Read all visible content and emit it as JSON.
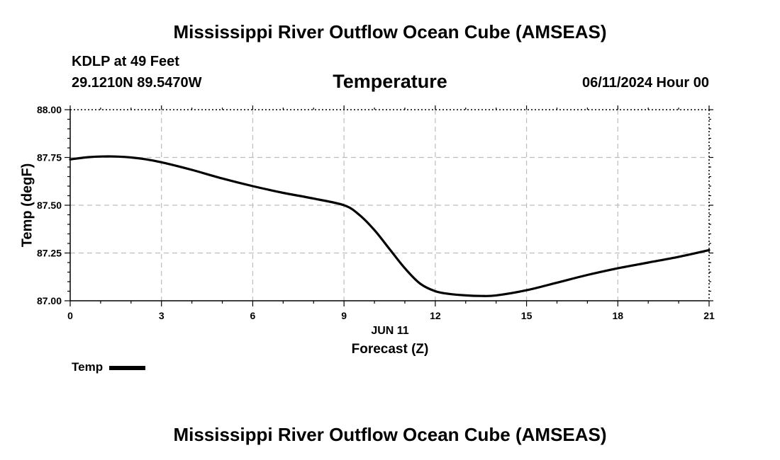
{
  "header": {
    "title": "Mississippi River Outflow Ocean Cube (AMSEAS)",
    "station": "KDLP at 49 Feet",
    "coords": "29.1210N  89.5470W",
    "variable": "Temperature",
    "datetime": "06/11/2024 Hour 00"
  },
  "footer": {
    "title": "Mississippi River Outflow Ocean Cube (AMSEAS)"
  },
  "legend": {
    "label": "Temp"
  },
  "chart_data": {
    "type": "line",
    "title": "Temperature",
    "xlabel": "Forecast (Z)",
    "xlabel_day": "JUN 11",
    "ylabel": "Temp (degF)",
    "xlim": [
      0,
      21
    ],
    "ylim": [
      87.0,
      88.0
    ],
    "xticks": [
      0,
      3,
      6,
      9,
      12,
      15,
      18,
      21
    ],
    "yticks": [
      87.0,
      87.25,
      87.5,
      87.75,
      88.0
    ],
    "ytick_labels": [
      "87.00",
      "87.25",
      "87.50",
      "87.75",
      "88.00"
    ],
    "grid": true,
    "series": [
      {
        "name": "Temp",
        "color": "#000000",
        "x": [
          0,
          0.5,
          1,
          1.5,
          2,
          2.5,
          3,
          4,
          5,
          6,
          7,
          8,
          9,
          9.5,
          10,
          10.5,
          11,
          11.5,
          12,
          12.5,
          13,
          13.5,
          14,
          15,
          16,
          17,
          18,
          19,
          20,
          21
        ],
        "values": [
          87.74,
          87.75,
          87.755,
          87.755,
          87.75,
          87.74,
          87.725,
          87.685,
          87.64,
          87.6,
          87.565,
          87.535,
          87.5,
          87.45,
          87.37,
          87.27,
          87.17,
          87.09,
          87.05,
          87.035,
          87.028,
          87.025,
          87.028,
          87.055,
          87.095,
          87.135,
          87.17,
          87.2,
          87.23,
          87.265
        ]
      }
    ]
  }
}
